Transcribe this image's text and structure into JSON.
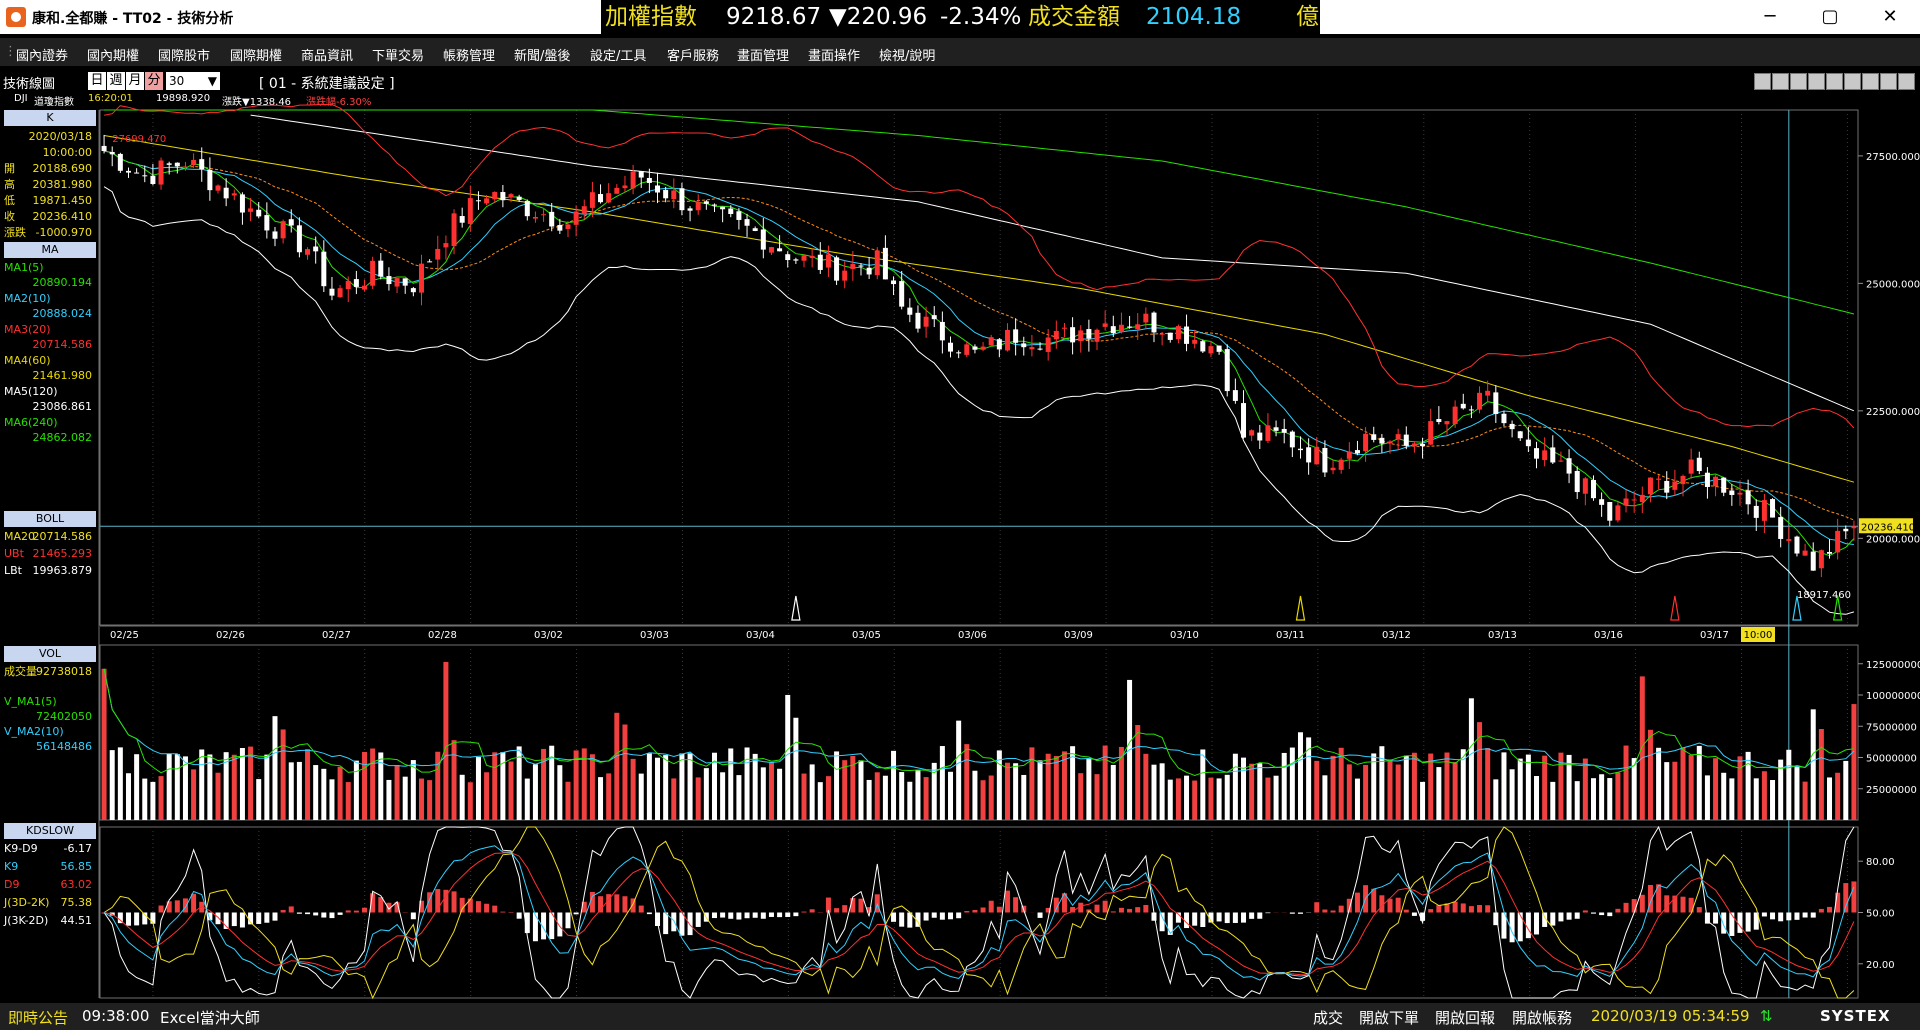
{
  "window": {
    "title": "康和.全都賺 - TT02 - 技術分析",
    "index_name": "加權指數",
    "index_value": "9218.67",
    "index_change": "▼220.96",
    "index_pct": "-2.34%",
    "turnover_label": "成交金額",
    "turnover_value": "2104.18",
    "turnover_unit": "億",
    "minimize": "─",
    "restore": "▢",
    "close": "✕"
  },
  "menu": [
    "國內證券",
    "國內期權",
    "國際股市",
    "國際期權",
    "商品資訊",
    "下單交易",
    "帳務管理",
    "新聞/盤後",
    "設定/工具",
    "客戶服務",
    "畫面管理",
    "畫面操作",
    "檢視/說明"
  ],
  "toolbar": {
    "panel_title": "技術線圖",
    "periods": [
      "日",
      "週",
      "月",
      "分"
    ],
    "active_period": "分",
    "interval": "30",
    "layout_label": "[ 01 - 系統建議設定 ]",
    "quote_symbol": "DJI",
    "quote_name": "道瓊指數",
    "quote_time": "16:20:01",
    "quote_price": "19898.920",
    "quote_change": "漲跌▼1338.46",
    "quote_pct": "漲跌幅-6.30%"
  },
  "left_panel": {
    "k_title": "K",
    "date": "2020/03/18",
    "time": "10:00:00",
    "ohlc": [
      {
        "label": "開",
        "value": "20188.690"
      },
      {
        "label": "高",
        "value": "20381.980"
      },
      {
        "label": "低",
        "value": "19871.450"
      },
      {
        "label": "收",
        "value": "20236.410"
      },
      {
        "label": "漲跌",
        "value": "-1000.970"
      }
    ],
    "ma_title": "MA",
    "ma": [
      {
        "label": "MA1(5)",
        "value": "20890.194",
        "color": "#27e000"
      },
      {
        "label": "MA2(10)",
        "value": "20888.024",
        "color": "#30d0ff"
      },
      {
        "label": "MA3(20)",
        "value": "20714.586",
        "color": "#ff3030"
      },
      {
        "label": "MA4(60)",
        "value": "21461.980",
        "color": "#e8d800"
      },
      {
        "label": "MA5(120)",
        "value": "23086.861",
        "color": "#ffffff"
      },
      {
        "label": "MA6(240)",
        "value": "24862.082",
        "color": "#27e000"
      }
    ],
    "boll_title": "BOLL",
    "boll": [
      {
        "label": "MA20",
        "value": "20714.586",
        "color": "#f0e020"
      },
      {
        "label": "UBt",
        "value": "21465.293",
        "color": "#ff3030"
      },
      {
        "label": "LBt",
        "value": "19963.879",
        "color": "#ffffff"
      }
    ],
    "vol_title": "VOL",
    "vol": [
      {
        "label": "成交量",
        "value": "92738018",
        "color": "#f0e020"
      },
      {
        "label": "V_MA1(5)",
        "value": "72402050",
        "color": "#27e000"
      },
      {
        "label": "V_MA2(10)",
        "value": "56148486",
        "color": "#30d0ff"
      }
    ],
    "kd_title": "KDSLOW",
    "kd": [
      {
        "label": "K9-D9",
        "value": "-6.17",
        "color": "#ffffff"
      },
      {
        "label": "K9",
        "value": "56.85",
        "color": "#30d0ff"
      },
      {
        "label": "D9",
        "value": "63.02",
        "color": "#ff3030"
      },
      {
        "label": "J(3D-2K)",
        "value": "75.38",
        "color": "#f0e020"
      },
      {
        "label": "J(3K-2D)",
        "value": "44.51",
        "color": "#ffffff"
      }
    ]
  },
  "chart_data": [
    {
      "type": "candlestick",
      "x_labels": [
        "02/25",
        "02/26",
        "02/27",
        "02/28",
        "03/02",
        "03/03",
        "03/04",
        "03/05",
        "03/06",
        "03/09",
        "03/10",
        "03/11",
        "03/12",
        "03/13",
        "03/16",
        "03/17",
        "10:00"
      ],
      "ylim": [
        18300,
        28400
      ],
      "y_ticks": [
        27500,
        25000,
        22500,
        20000
      ],
      "y_tick_labels": [
        "27500.000",
        "25000.000",
        "22500.000",
        "20000.000"
      ],
      "high_label": "27699.470",
      "low_label": "18917.460",
      "last_price": "20236.410",
      "close_path": [
        [
          0,
          27600
        ],
        [
          5,
          27100
        ],
        [
          10,
          27400
        ],
        [
          15,
          26800
        ],
        [
          20,
          26200
        ],
        [
          25,
          25700
        ],
        [
          28,
          24800
        ],
        [
          33,
          25200
        ],
        [
          38,
          25000
        ],
        [
          42,
          26000
        ],
        [
          47,
          26800
        ],
        [
          52,
          26500
        ],
        [
          57,
          26200
        ],
        [
          62,
          26800
        ],
        [
          66,
          27100
        ],
        [
          70,
          26700
        ],
        [
          75,
          26300
        ],
        [
          80,
          26000
        ],
        [
          85,
          25500
        ],
        [
          90,
          25300
        ],
        [
          95,
          25400
        ],
        [
          98,
          24500
        ],
        [
          103,
          24000
        ],
        [
          107,
          23600
        ],
        [
          112,
          24000
        ],
        [
          117,
          23900
        ],
        [
          122,
          24200
        ],
        [
          127,
          24300
        ],
        [
          132,
          24100
        ],
        [
          137,
          23700
        ],
        [
          140,
          22000
        ],
        [
          145,
          22000
        ],
        [
          150,
          21500
        ],
        [
          155,
          22000
        ],
        [
          160,
          21800
        ],
        [
          165,
          22300
        ],
        [
          170,
          22700
        ],
        [
          175,
          21600
        ],
        [
          180,
          21300
        ],
        [
          185,
          20400
        ],
        [
          190,
          21000
        ],
        [
          195,
          21300
        ],
        [
          200,
          21000
        ],
        [
          205,
          20400
        ],
        [
          210,
          19500
        ],
        [
          215,
          20236
        ]
      ],
      "series": [
        {
          "name": "MA1(5)",
          "color": "#27e000",
          "offset": 0
        },
        {
          "name": "MA2(10)",
          "color": "#30d0ff",
          "offset": 150
        },
        {
          "name": "MA3(20)",
          "color": "#ff3030",
          "offset": -500
        }
      ],
      "smooth_lines": [
        {
          "name": "MA4(60)",
          "color": "#e8d800",
          "points": [
            [
              0,
              27900
            ],
            [
              30,
              27100
            ],
            [
              60,
              26400
            ],
            [
              90,
              25600
            ],
            [
              120,
              24900
            ],
            [
              150,
              24000
            ],
            [
              175,
              22800
            ],
            [
              200,
              21800
            ],
            [
              215,
              21100
            ]
          ]
        },
        {
          "name": "MA5(120)",
          "color": "#ffffff",
          "points": [
            [
              18,
              28300
            ],
            [
              60,
              27300
            ],
            [
              100,
              26600
            ],
            [
              130,
              25500
            ],
            [
              160,
              25200
            ],
            [
              190,
              24200
            ],
            [
              215,
              22500
            ]
          ]
        },
        {
          "name": "MA6(240)",
          "color": "#27e000",
          "points": [
            [
              0,
              29100
            ],
            [
              60,
              28400
            ],
            [
              100,
              27900
            ],
            [
              130,
              27400
            ],
            [
              160,
              26500
            ],
            [
              190,
              25400
            ],
            [
              215,
              24400
            ]
          ]
        }
      ],
      "bollinger": {
        "upper_color": "#ff3030",
        "lower_color": "#ffffff",
        "width": 1100
      },
      "markers": [
        {
          "x": 85,
          "color": "#ffffff"
        },
        {
          "x": 147,
          "color": "#e8d800"
        },
        {
          "x": 193,
          "color": "#ff3030"
        },
        {
          "x": 208,
          "color": "#30d0ff"
        },
        {
          "x": 213,
          "color": "#27e000"
        }
      ]
    },
    {
      "type": "bar",
      "title": "VOL",
      "ylim": [
        0,
        140000000
      ],
      "y_ticks": [
        125000000,
        100000000,
        75000000,
        50000000,
        25000000
      ],
      "y_tick_labels": [
        "125000000",
        "100000000",
        "75000000",
        "50000000",
        "25000000"
      ],
      "series": [
        {
          "name": "成交量",
          "values": "derived"
        },
        {
          "name": "V_MA1(5)",
          "color": "#27e000"
        },
        {
          "name": "V_MA2(10)",
          "color": "#30d0ff"
        }
      ]
    },
    {
      "type": "line",
      "title": "KDSLOW",
      "ylim": [
        0,
        100
      ],
      "y_ticks": [
        80,
        50,
        20
      ],
      "y_tick_labels": [
        "80.00",
        "50.00",
        "20.00"
      ],
      "series": [
        {
          "name": "K9-D9"
        },
        {
          "name": "K9",
          "color": "#30d0ff"
        },
        {
          "name": "D9",
          "color": "#ff3030"
        },
        {
          "name": "J(3D-2K)",
          "color": "#f0e020"
        },
        {
          "name": "J(3K-2D)",
          "color": "#ffffff"
        }
      ]
    }
  ],
  "status": {
    "notice_label": "即時公告",
    "notice_time": "09:38:00",
    "notice_text": "Excel當沖大師",
    "deal": "成交",
    "open_order": "開啟下單",
    "open_report": "開啟回報",
    "open_account": "開啟帳務",
    "clock": "2020/03/19 05:34:59",
    "brand": "SYSTEX"
  }
}
